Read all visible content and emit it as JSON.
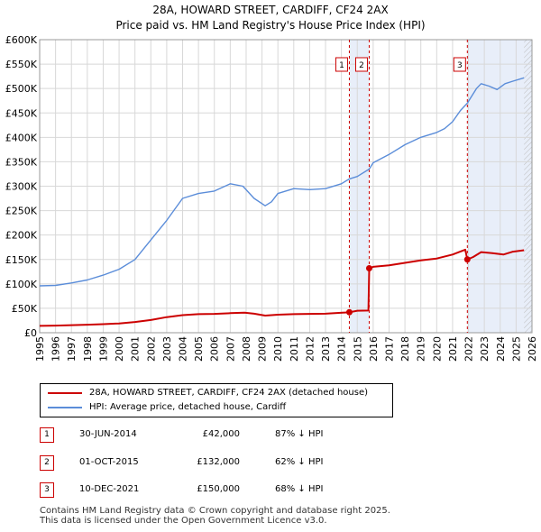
{
  "title_line1": "28A, HOWARD STREET, CARDIFF, CF24 2AX",
  "title_line2": "Price paid vs. HM Land Registry's House Price Index (HPI)",
  "chart_data": {
    "type": "line",
    "xlabel": "",
    "ylabel": "",
    "xlim": [
      1995,
      2026
    ],
    "ylim": [
      0,
      600000
    ],
    "x_ticks": [
      1995,
      1996,
      1997,
      1998,
      1999,
      2000,
      2001,
      2002,
      2003,
      2004,
      2005,
      2006,
      2007,
      2008,
      2009,
      2010,
      2011,
      2012,
      2013,
      2014,
      2015,
      2016,
      2017,
      2018,
      2019,
      2020,
      2021,
      2022,
      2023,
      2024,
      2025,
      2026
    ],
    "y_ticks": [
      0,
      50000,
      100000,
      150000,
      200000,
      250000,
      300000,
      350000,
      400000,
      450000,
      500000,
      550000,
      600000
    ],
    "y_tick_labels": [
      "£0",
      "£50K",
      "£100K",
      "£150K",
      "£200K",
      "£250K",
      "£300K",
      "£350K",
      "£400K",
      "£450K",
      "£500K",
      "£550K",
      "£600K"
    ],
    "grid": true,
    "series": [
      {
        "name": "28A, HOWARD STREET, CARDIFF, CF24 2AX (detached house)",
        "color": "#cc0000",
        "points": [
          [
            1995,
            14000
          ],
          [
            1996,
            14500
          ],
          [
            1997,
            15500
          ],
          [
            1998,
            16500
          ],
          [
            1999,
            17500
          ],
          [
            2000,
            19000
          ],
          [
            2001,
            22000
          ],
          [
            2002,
            26000
          ],
          [
            2003,
            32000
          ],
          [
            2004,
            36000
          ],
          [
            2005,
            38000
          ],
          [
            2006,
            38500
          ],
          [
            2007,
            40000
          ],
          [
            2007.9,
            41000
          ],
          [
            2008.5,
            39000
          ],
          [
            2009.2,
            35000
          ],
          [
            2010,
            37000
          ],
          [
            2011,
            38000
          ],
          [
            2012,
            38500
          ],
          [
            2013,
            39000
          ],
          [
            2014.5,
            42000
          ],
          [
            2015,
            45000
          ],
          [
            2015.7,
            45500
          ],
          [
            2015.75,
            132000
          ],
          [
            2016,
            135000
          ],
          [
            2017,
            138000
          ],
          [
            2018,
            143000
          ],
          [
            2019,
            148000
          ],
          [
            2020,
            152000
          ],
          [
            2021,
            160000
          ],
          [
            2021.8,
            170000
          ],
          [
            2021.93,
            150000
          ],
          [
            2022.3,
            155000
          ],
          [
            2022.8,
            165000
          ],
          [
            2023.5,
            163000
          ],
          [
            2024.2,
            160000
          ],
          [
            2024.8,
            166000
          ],
          [
            2025.5,
            169000
          ]
        ]
      },
      {
        "name": "HPI: Average price, detached house, Cardiff",
        "color": "#5b8dd9",
        "points": [
          [
            1995,
            96000
          ],
          [
            1996,
            97000
          ],
          [
            1997,
            102000
          ],
          [
            1998,
            108000
          ],
          [
            1999,
            118000
          ],
          [
            2000,
            130000
          ],
          [
            2001,
            150000
          ],
          [
            2002,
            190000
          ],
          [
            2003,
            230000
          ],
          [
            2004,
            275000
          ],
          [
            2005,
            285000
          ],
          [
            2006,
            290000
          ],
          [
            2007,
            305000
          ],
          [
            2007.8,
            300000
          ],
          [
            2008.5,
            275000
          ],
          [
            2009.2,
            260000
          ],
          [
            2009.6,
            268000
          ],
          [
            2010,
            285000
          ],
          [
            2011,
            295000
          ],
          [
            2012,
            293000
          ],
          [
            2013,
            295000
          ],
          [
            2014,
            305000
          ],
          [
            2014.5,
            315000
          ],
          [
            2015,
            320000
          ],
          [
            2015.75,
            335000
          ],
          [
            2016,
            348000
          ],
          [
            2017,
            365000
          ],
          [
            2018,
            385000
          ],
          [
            2019,
            400000
          ],
          [
            2020,
            410000
          ],
          [
            2020.5,
            418000
          ],
          [
            2021,
            432000
          ],
          [
            2021.5,
            455000
          ],
          [
            2021.93,
            470000
          ],
          [
            2022.5,
            500000
          ],
          [
            2022.8,
            510000
          ],
          [
            2023.3,
            505000
          ],
          [
            2023.8,
            498000
          ],
          [
            2024.3,
            510000
          ],
          [
            2024.8,
            515000
          ],
          [
            2025.5,
            522000
          ]
        ]
      }
    ],
    "sales": [
      {
        "num": "1",
        "x": 2014.5,
        "price": 42000,
        "date": "30-JUN-2014",
        "price_label": "£42,000",
        "hpi": "87% ↓ HPI"
      },
      {
        "num": "2",
        "x": 2015.75,
        "price": 132000,
        "date": "01-OCT-2015",
        "price_label": "£132,000",
        "hpi": "62% ↓ HPI"
      },
      {
        "num": "3",
        "x": 2021.93,
        "price": 150000,
        "date": "10-DEC-2021",
        "price_label": "£150,000",
        "hpi": "68% ↓ HPI"
      }
    ],
    "shaded_ranges": [
      [
        2014.5,
        2015.75
      ],
      [
        2021.93,
        2026
      ]
    ],
    "hatched_from": 2025.5
  },
  "legend": {
    "property_label": "28A, HOWARD STREET, CARDIFF, CF24 2AX (detached house)",
    "hpi_label": "HPI: Average price, detached house, Cardiff"
  },
  "footer": {
    "line1": "Contains HM Land Registry data © Crown copyright and database right 2025.",
    "line2": "This data is licensed under the Open Government Licence v3.0."
  }
}
